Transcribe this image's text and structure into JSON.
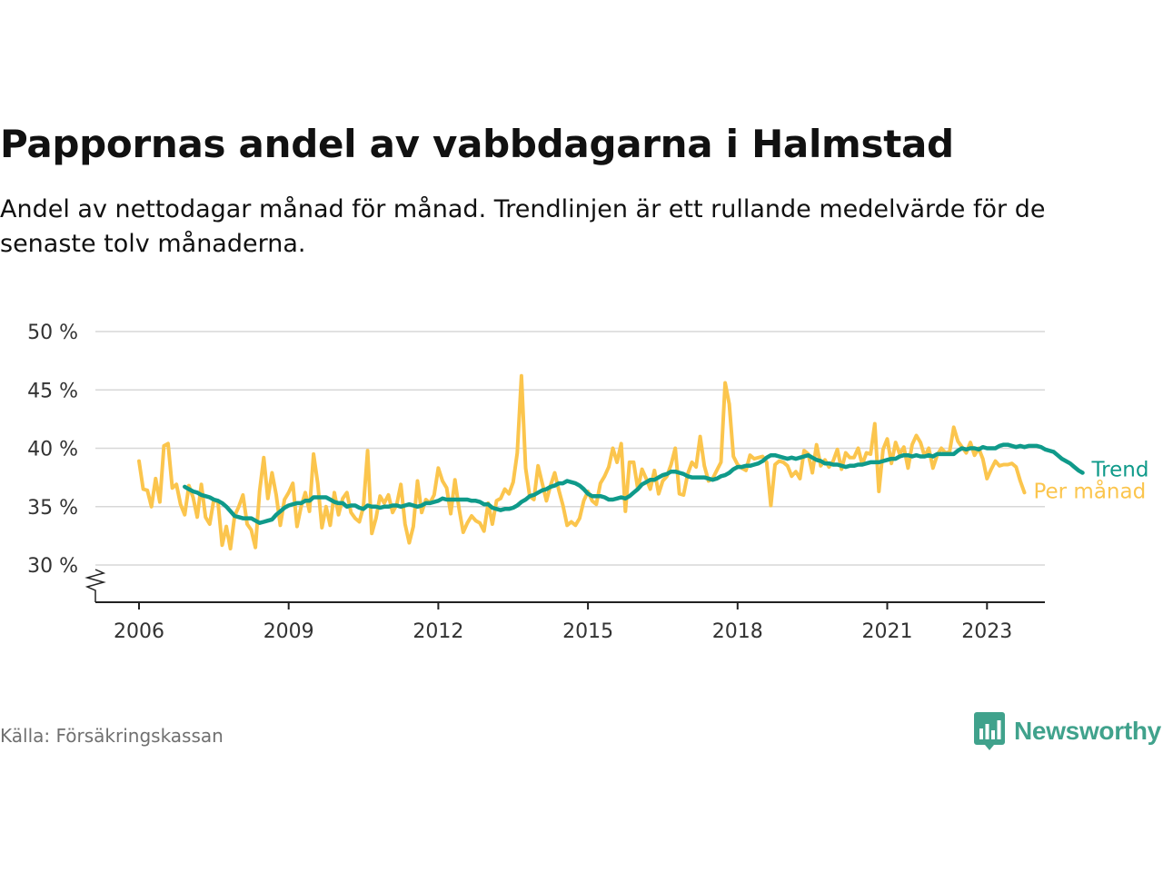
{
  "header": {
    "title": "Pappornas andel av vabbdagarna i Halmstad",
    "subtitle": "Andel av nettodagar månad för månad. Trendlinjen är ett rullande medelvärde för de senaste tolv månaderna."
  },
  "footer": {
    "source": "Källa: Försäkringskassan",
    "brand": "Newsworthy"
  },
  "colors": {
    "monthly": "#fbc54d",
    "trend": "#0f9a8a",
    "grid": "#d7d7d7",
    "axis": "#222222",
    "brand": "#40a28c"
  },
  "chart_data": {
    "type": "line",
    "title": "Pappornas andel av vabbdagarna i Halmstad",
    "subtitle": "Andel av nettodagar månad för månad. Trendlinjen är ett rullande medelvärde för de senaste tolv månaderna.",
    "xlabel": "",
    "ylabel": "",
    "ylim": [
      30,
      50
    ],
    "y_break": true,
    "y_ticks": [
      30,
      35,
      40,
      45,
      50
    ],
    "y_tick_labels": [
      "30 %",
      "35 %",
      "40 %",
      "45 %",
      "50 %"
    ],
    "x_ticks": [
      2006,
      2009,
      2012,
      2015,
      2018,
      2021,
      2023
    ],
    "x_tick_labels": [
      "2006",
      "2009",
      "2012",
      "2015",
      "2018",
      "2021",
      "2023"
    ],
    "grid": true,
    "series": [
      {
        "name": "Per månad",
        "color": "#fbc54d",
        "start": "2006-01",
        "frequency": "monthly",
        "values": [
          38.9,
          36.5,
          36.4,
          35.0,
          37.4,
          35.4,
          40.2,
          40.4,
          36.6,
          36.9,
          35.2,
          34.3,
          36.8,
          35.8,
          34.1,
          36.9,
          34.1,
          33.5,
          35.6,
          35.4,
          31.7,
          33.3,
          31.4,
          34.2,
          35.0,
          36.0,
          33.5,
          33.0,
          31.5,
          36.3,
          39.2,
          35.7,
          37.9,
          36.0,
          33.4,
          35.6,
          36.2,
          37.0,
          33.3,
          35.0,
          36.2,
          34.6,
          39.5,
          37.0,
          33.2,
          35.0,
          33.4,
          36.2,
          34.3,
          35.7,
          36.2,
          34.5,
          34.0,
          33.7,
          35.0,
          39.8,
          32.7,
          34.0,
          35.9,
          35.3,
          36.0,
          34.5,
          35.2,
          36.9,
          33.5,
          31.9,
          33.3,
          37.2,
          34.5,
          35.6,
          35.3,
          36.0,
          38.3,
          37.2,
          36.6,
          34.4,
          37.3,
          34.8,
          32.8,
          33.6,
          34.2,
          33.8,
          33.6,
          32.9,
          35.3,
          33.5,
          35.5,
          35.7,
          36.5,
          36.1,
          37.1,
          39.6,
          46.2,
          38.3,
          35.9,
          35.6,
          38.5,
          37.0,
          35.5,
          36.8,
          37.9,
          36.4,
          35.1,
          33.4,
          33.7,
          33.4,
          34.0,
          35.5,
          36.3,
          35.5,
          35.2,
          37.0,
          37.6,
          38.4,
          40.0,
          38.8,
          40.4,
          34.6,
          38.8,
          38.8,
          36.5,
          38.2,
          37.4,
          36.5,
          38.1,
          36.1,
          37.2,
          37.6,
          38.6,
          40.0,
          36.1,
          36.0,
          37.8,
          38.8,
          38.4,
          41.0,
          38.5,
          37.2,
          37.4,
          38.1,
          38.8,
          45.6,
          43.8,
          39.3,
          38.6,
          38.3,
          38.1,
          39.4,
          39.1,
          39.2,
          39.3,
          38.8,
          35.1,
          38.6,
          38.9,
          38.8,
          38.5,
          37.6,
          38.0,
          37.4,
          39.8,
          39.5,
          37.9,
          40.3,
          38.5,
          39.0,
          38.4,
          38.9,
          39.9,
          38.2,
          39.6,
          39.2,
          39.2,
          40.0,
          38.6,
          39.6,
          39.5,
          42.1,
          36.3,
          39.9,
          40.8,
          38.7,
          40.5,
          39.5,
          40.1,
          38.3,
          40.3,
          41.1,
          40.5,
          39.3,
          40.0,
          38.3,
          39.4,
          40.0,
          39.6,
          39.7,
          41.8,
          40.6,
          40.1,
          39.6,
          40.5,
          39.4,
          40.0,
          39.1,
          37.4,
          38.2,
          38.9,
          38.5,
          38.6,
          38.6,
          38.7,
          38.4,
          37.2,
          36.2
        ]
      },
      {
        "name": "Trend",
        "color": "#0f9a8a",
        "start": "2006-12",
        "frequency": "monthly",
        "values": [
          36.7,
          36.5,
          36.3,
          36.2,
          36.0,
          35.9,
          35.8,
          35.6,
          35.5,
          35.3,
          35.0,
          34.6,
          34.2,
          34.1,
          34.0,
          34.0,
          34.0,
          33.8,
          33.6,
          33.7,
          33.8,
          33.9,
          34.3,
          34.6,
          34.9,
          35.1,
          35.2,
          35.3,
          35.3,
          35.5,
          35.5,
          35.8,
          35.8,
          35.8,
          35.8,
          35.6,
          35.4,
          35.3,
          35.3,
          35.0,
          35.1,
          35.1,
          34.9,
          34.8,
          35.1,
          35.0,
          35.0,
          34.9,
          35.0,
          35.0,
          35.1,
          35.1,
          35.0,
          35.1,
          35.2,
          35.1,
          35.0,
          35.1,
          35.3,
          35.3,
          35.4,
          35.5,
          35.7,
          35.6,
          35.6,
          35.6,
          35.6,
          35.6,
          35.6,
          35.5,
          35.5,
          35.4,
          35.2,
          35.2,
          34.9,
          34.8,
          34.7,
          34.8,
          34.8,
          34.9,
          35.1,
          35.4,
          35.6,
          35.9,
          36.0,
          36.2,
          36.4,
          36.5,
          36.7,
          36.8,
          37.0,
          37.0,
          37.2,
          37.1,
          37.0,
          36.8,
          36.5,
          36.1,
          35.9,
          35.9,
          35.9,
          35.8,
          35.6,
          35.6,
          35.7,
          35.8,
          35.7,
          35.9,
          36.2,
          36.5,
          36.9,
          37.1,
          37.3,
          37.3,
          37.5,
          37.7,
          37.8,
          38.0,
          38.0,
          37.9,
          37.8,
          37.6,
          37.5,
          37.5,
          37.5,
          37.5,
          37.4,
          37.3,
          37.4,
          37.6,
          37.7,
          37.9,
          38.2,
          38.4,
          38.4,
          38.5,
          38.5,
          38.6,
          38.7,
          38.9,
          39.2,
          39.4,
          39.4,
          39.3,
          39.2,
          39.1,
          39.2,
          39.1,
          39.2,
          39.3,
          39.4,
          39.2,
          39.0,
          38.9,
          38.7,
          38.7,
          38.6,
          38.6,
          38.5,
          38.4,
          38.5,
          38.5,
          38.6,
          38.6,
          38.7,
          38.8,
          38.8,
          38.8,
          38.9,
          39.0,
          39.1,
          39.1,
          39.3,
          39.4,
          39.4,
          39.3,
          39.4,
          39.3,
          39.3,
          39.4,
          39.3,
          39.5,
          39.5,
          39.5,
          39.5,
          39.5,
          39.8,
          40.0,
          39.9,
          40.0,
          40.0,
          39.9,
          40.1,
          40.0,
          40.0,
          40.0,
          40.2,
          40.3,
          40.3,
          40.2,
          40.1,
          40.2,
          40.1,
          40.2,
          40.2,
          40.2,
          40.1,
          39.9,
          39.8,
          39.7,
          39.4,
          39.1,
          38.9,
          38.7,
          38.4,
          38.1,
          37.9
        ]
      }
    ]
  }
}
